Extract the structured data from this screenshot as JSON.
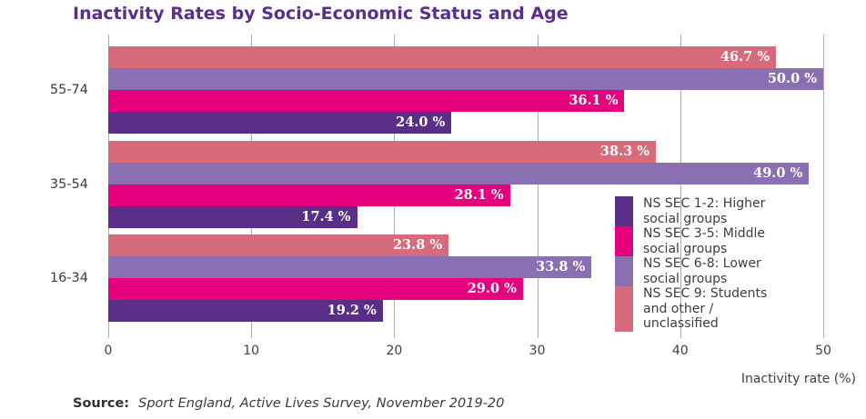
{
  "title": "Inactivity Rates by Socio-Economic Status and Age",
  "chart_data": {
    "type": "bar",
    "orientation": "horizontal",
    "title": "Inactivity Rates by Socio-Economic Status and Age",
    "categories": [
      "55-74",
      "35-54",
      "16-34"
    ],
    "series": [
      {
        "name": "NS SEC 1-2: Higher social groups",
        "color": "#5a2d86",
        "values": [
          24.0,
          17.4,
          19.2
        ]
      },
      {
        "name": "NS SEC 3-5: Middle social groups",
        "color": "#e5007e",
        "values": [
          36.1,
          28.1,
          29.0
        ]
      },
      {
        "name": "NS SEC 6-8: Lower social groups",
        "color": "#8a70b2",
        "values": [
          50.0,
          49.0,
          33.8
        ]
      },
      {
        "name": "NS SEC 9: Students and other / unclassified",
        "color": "#d56b7b",
        "values": [
          46.7,
          38.3,
          23.8
        ]
      }
    ],
    "row_order_top_to_bottom": [
      3,
      2,
      1,
      0
    ],
    "value_label_suffix": " %",
    "xlabel": "Inactivity rate (%)",
    "x_ticks": [
      0,
      10,
      20,
      30,
      40,
      50
    ],
    "xlim": [
      0,
      50
    ],
    "grid": true,
    "legend_position": "inside-right"
  },
  "legend": {
    "items": [
      {
        "lines": [
          "NS SEC 1-2: Higher",
          "social groups"
        ],
        "color": "#5a2d86"
      },
      {
        "lines": [
          "NS SEC 3-5: Middle",
          "social groups"
        ],
        "color": "#e5007e"
      },
      {
        "lines": [
          "NS SEC 6-8: Lower",
          "social groups"
        ],
        "color": "#8a70b2"
      },
      {
        "lines": [
          "NS SEC 9: Students",
          "and other /",
          "unclassified"
        ],
        "color": "#d56b7b"
      }
    ]
  },
  "source": {
    "label": "Source:",
    "text": "Sport England, Active Lives Survey, November 2019-20"
  },
  "colors": {
    "title": "#5c2d90",
    "grid": "#aeaeae",
    "axis_text": "#404040",
    "value_text": "#ffffff"
  }
}
